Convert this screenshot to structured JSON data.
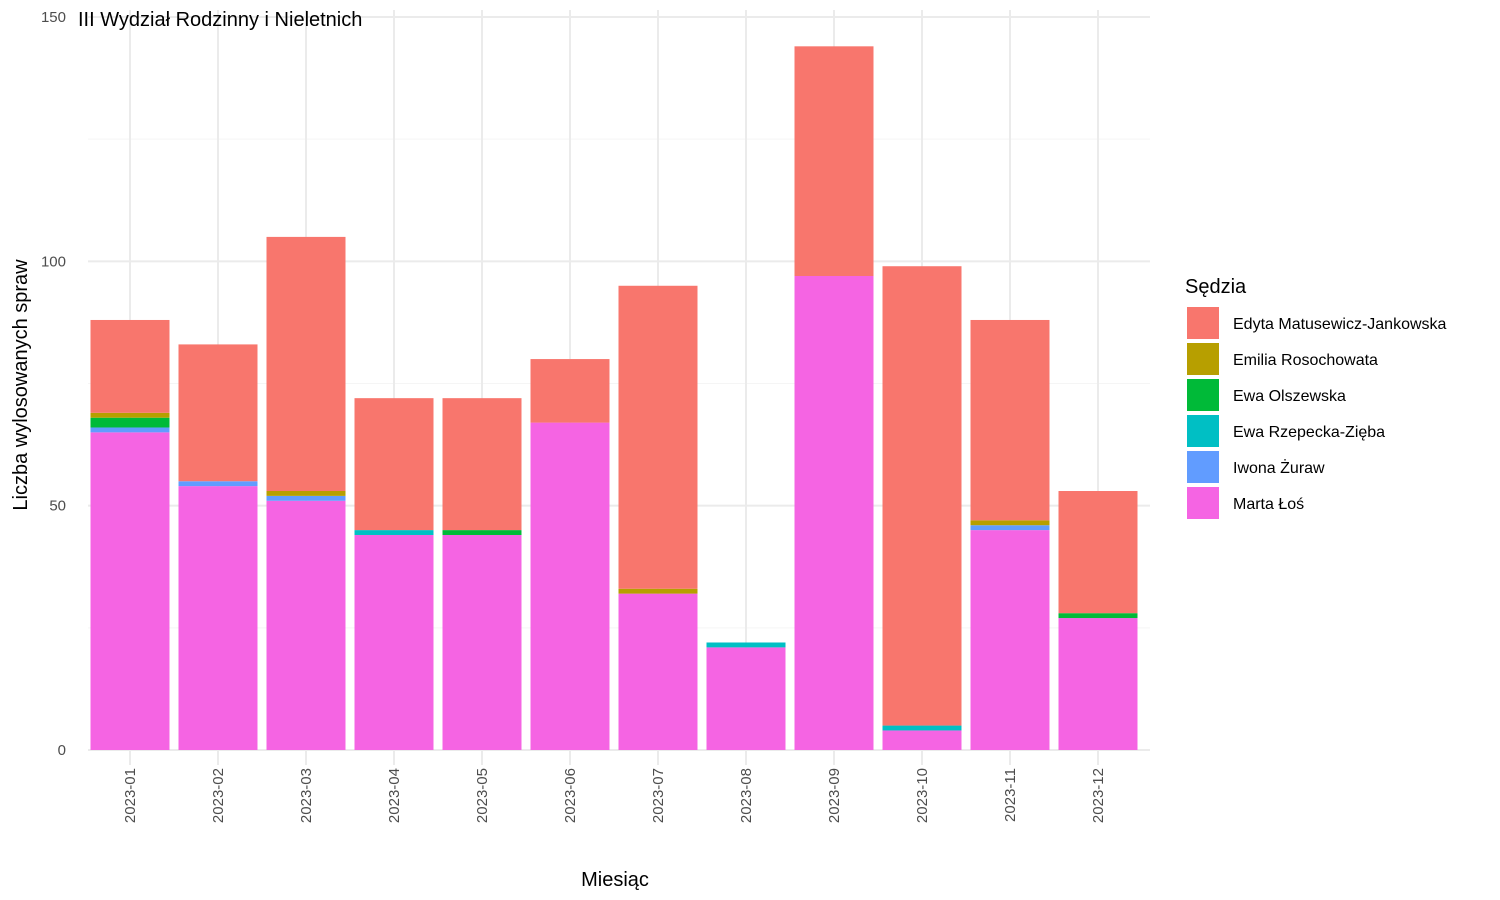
{
  "chart_data": {
    "type": "bar",
    "stacked": true,
    "title": "III Wydział Rodzinny i Nieletnich",
    "xlabel": "Miesiąc",
    "ylabel": "Liczba wylosowanych spraw",
    "ylim": [
      0,
      150
    ],
    "yticks": [
      0,
      50,
      100,
      150
    ],
    "grid": true,
    "legend_title": "Sędzia",
    "legend_position": "right",
    "categories": [
      "2023-01",
      "2023-02",
      "2023-03",
      "2023-04",
      "2023-05",
      "2023-06",
      "2023-07",
      "2023-08",
      "2023-09",
      "2023-10",
      "2023-11",
      "2023-12"
    ],
    "series": [
      {
        "name": "Marta Łoś",
        "color": "#F564E3",
        "values": [
          65,
          54,
          51,
          44,
          44,
          67,
          32,
          21,
          97,
          4,
          45,
          27
        ]
      },
      {
        "name": "Iwona Żuraw",
        "color": "#619CFF",
        "values": [
          1,
          1,
          1,
          0,
          0,
          0,
          0,
          0,
          0,
          0,
          1,
          0
        ]
      },
      {
        "name": "Ewa Rzepecka-Zięba",
        "color": "#00BFC4",
        "values": [
          0,
          0,
          0,
          1,
          0,
          0,
          0,
          1,
          0,
          1,
          0,
          0
        ]
      },
      {
        "name": "Ewa Olszewska",
        "color": "#00BA38",
        "values": [
          2,
          0,
          0,
          0,
          1,
          0,
          0,
          0,
          0,
          0,
          0,
          1
        ]
      },
      {
        "name": "Emilia Rosochowata",
        "color": "#B79F00",
        "values": [
          1,
          0,
          1,
          0,
          0,
          0,
          1,
          0,
          0,
          0,
          1,
          0
        ]
      },
      {
        "name": "Edyta Matusewicz-Jankowska",
        "color": "#F8766D",
        "values": [
          19,
          28,
          52,
          27,
          27,
          13,
          62,
          0,
          47,
          94,
          41,
          25
        ]
      }
    ],
    "legend_order": [
      "Edyta Matusewicz-Jankowska",
      "Emilia Rosochowata",
      "Ewa Olszewska",
      "Ewa Rzepecka-Zięba",
      "Iwona Żuraw",
      "Marta Łoś"
    ]
  }
}
